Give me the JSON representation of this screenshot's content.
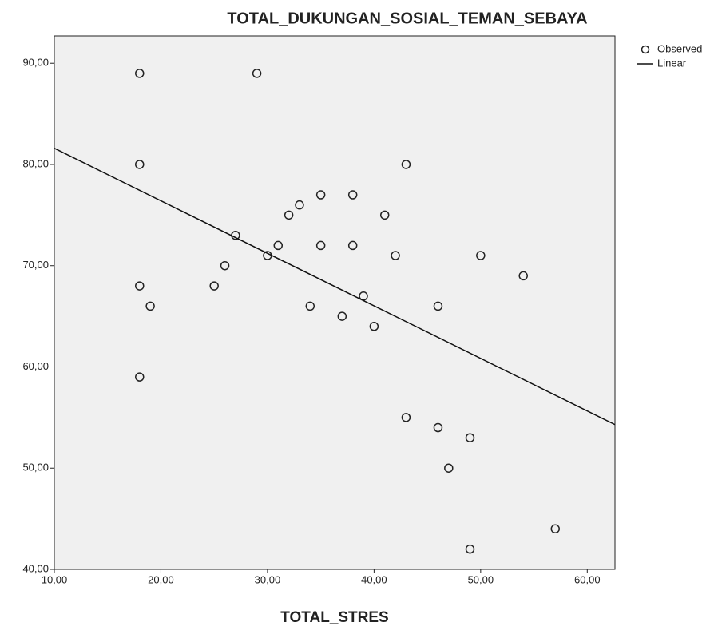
{
  "chart_data": {
    "type": "scatter",
    "title": "TOTAL_DUKUNGAN_SOSIAL_TEMAN_SEBAYA",
    "x_label": "TOTAL_STRES",
    "series": [
      {
        "name": "Observed",
        "style": "markers",
        "color": "#222222",
        "x": [
          18,
          29,
          18,
          43,
          35,
          38,
          32,
          33,
          41,
          27,
          31,
          35,
          38,
          30,
          42,
          50,
          26,
          54,
          18,
          25,
          19,
          34,
          46,
          39,
          37,
          40,
          18,
          43,
          46,
          49,
          47,
          57,
          49
        ],
        "values": [
          89,
          89,
          80,
          80,
          77,
          77,
          75,
          76,
          75,
          73,
          72,
          72,
          72,
          71,
          71,
          71,
          70,
          69,
          68,
          68,
          66,
          66,
          66,
          67,
          65,
          64,
          59,
          55,
          54,
          53,
          50,
          44,
          42
        ]
      },
      {
        "name": "Linear",
        "style": "line",
        "color": "#111111",
        "x": [
          10,
          62.6
        ],
        "values": [
          81.6,
          54.3
        ]
      }
    ],
    "xlim": [
      10,
      62.6
    ],
    "ylim": [
      40,
      92.7
    ],
    "xticks": [
      {
        "value": 10,
        "label": "10,00"
      },
      {
        "value": 20,
        "label": "20,00"
      },
      {
        "value": 30,
        "label": "30,00"
      },
      {
        "value": 40,
        "label": "40,00"
      },
      {
        "value": 50,
        "label": "50,00"
      },
      {
        "value": 60,
        "label": "60,00"
      }
    ],
    "yticks": [
      {
        "value": 40,
        "label": "40,00"
      },
      {
        "value": 50,
        "label": "50,00"
      },
      {
        "value": 60,
        "label": "60,00"
      },
      {
        "value": 70,
        "label": "70,00"
      },
      {
        "value": 80,
        "label": "80,00"
      },
      {
        "value": 90,
        "label": "90,00"
      }
    ],
    "plot_background": "#f0f0f0"
  }
}
